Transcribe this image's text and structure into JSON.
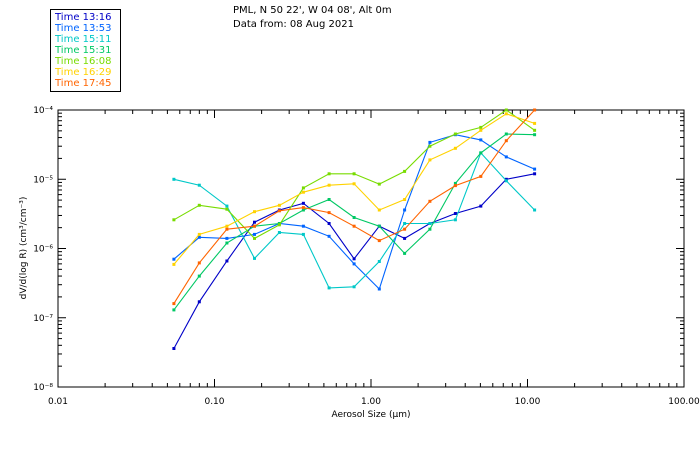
{
  "header": {
    "location": "PML, N 50 22', W 04 08', Alt 0m",
    "date": "Data from: 08 Aug 2021"
  },
  "chart_data": {
    "type": "line",
    "xscale": "log",
    "yscale": "log",
    "xlim": [
      0.01,
      100
    ],
    "ylim": [
      1e-08,
      0.0001
    ],
    "xlabel": "Aerosol Size (μm)",
    "ylabel": "dV/d(log R) (cm³/cm⁻³)",
    "x_ticks": [
      0.01,
      0.1,
      1,
      10,
      100
    ],
    "x_tick_labels": [
      "0.01",
      "0.10",
      "1.00",
      "10.00",
      "100.00"
    ],
    "y_ticks": [
      1e-08,
      1e-07,
      1e-06,
      1e-05,
      0.0001
    ],
    "y_tick_labels": [
      "10⁻⁸",
      "10⁻⁷",
      "10⁻⁶",
      "10⁻⁵",
      "10⁻⁴"
    ],
    "x": [
      0.055,
      0.08,
      0.12,
      0.18,
      0.26,
      0.37,
      0.54,
      0.78,
      1.13,
      1.64,
      2.38,
      3.46,
      5.03,
      7.32,
      11.1
    ],
    "series": [
      {
        "name": "Time 13:16",
        "color": "#0000c8",
        "values": [
          3.6e-08,
          1.7e-07,
          6.6e-07,
          2.4e-06,
          3.6e-06,
          4.5e-06,
          2.3e-06,
          7.1e-07,
          2.1e-06,
          1.4e-06,
          2.3e-06,
          3.2e-06,
          4.1e-06,
          1e-05,
          1.2e-05
        ]
      },
      {
        "name": "Time 13:53",
        "color": "#0064ff",
        "values": [
          7e-07,
          1.45e-06,
          1.4e-06,
          1.6e-06,
          2.3e-06,
          2.1e-06,
          1.5e-06,
          6e-07,
          2.6e-07,
          3.6e-06,
          3.4e-05,
          4.4e-05,
          3.7e-05,
          2.1e-05,
          1.4e-05
        ]
      },
      {
        "name": "Time 15:11",
        "color": "#00c8c8",
        "values": [
          1e-05,
          8.2e-06,
          4.1e-06,
          7.2e-07,
          1.7e-06,
          1.6e-06,
          2.7e-07,
          2.8e-07,
          6.5e-07,
          2.3e-06,
          2.3e-06,
          2.6e-06,
          2.4e-05,
          9.5e-06,
          3.6e-06
        ]
      },
      {
        "name": "Time 15:31",
        "color": "#00c864",
        "values": [
          1.3e-07,
          4e-07,
          1.2e-06,
          2.1e-06,
          2.3e-06,
          3.6e-06,
          5.1e-06,
          2.8e-06,
          2.1e-06,
          8.5e-07,
          1.9e-06,
          8.7e-06,
          2.4e-05,
          4.5e-05,
          4.4e-05
        ]
      },
      {
        "name": "Time 16:08",
        "color": "#78dc00",
        "values": [
          2.6e-06,
          4.2e-06,
          3.7e-06,
          1.4e-06,
          2.2e-06,
          7.5e-06,
          1.2e-05,
          1.2e-05,
          8.5e-06,
          1.3e-05,
          3e-05,
          4.5e-05,
          5.6e-05,
          0.0001,
          5.1e-05
        ]
      },
      {
        "name": "Time 16:29",
        "color": "#ffd200",
        "values": [
          5.9e-07,
          1.6e-06,
          2.1e-06,
          3.4e-06,
          4.2e-06,
          6.5e-06,
          8.2e-06,
          8.6e-06,
          3.6e-06,
          5.1e-06,
          1.9e-05,
          2.8e-05,
          5.1e-05,
          8.8e-05,
          6.4e-05
        ]
      },
      {
        "name": "Time 17:45",
        "color": "#ff6400",
        "values": [
          1.6e-07,
          6.2e-07,
          1.9e-06,
          2.1e-06,
          3.5e-06,
          3.9e-06,
          3.3e-06,
          2.1e-06,
          1.3e-06,
          1.9e-06,
          4.8e-06,
          8.1e-06,
          1.1e-05,
          3.6e-05,
          0.0001
        ]
      }
    ]
  }
}
